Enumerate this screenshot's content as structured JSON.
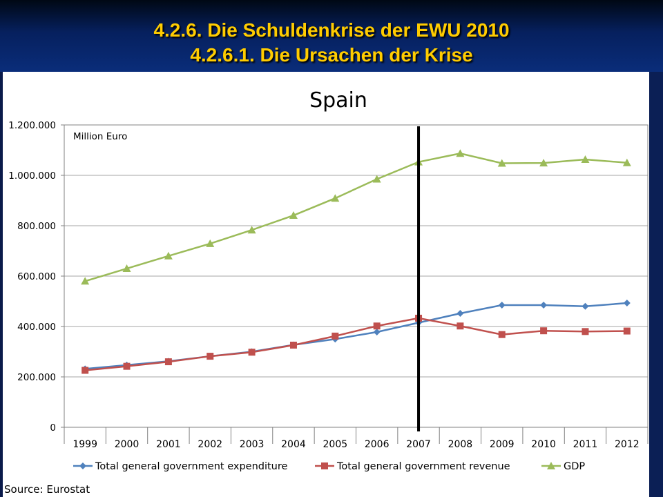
{
  "slide": {
    "title_line1": "4.2.6. Die Schuldenkrise der EWU 2010",
    "title_line2": "4.2.6.1. Die Ursachen der Krise",
    "source": "Source: Eurostat"
  },
  "chart_data": {
    "type": "line",
    "title": "Spain",
    "unit_label": "Million Euro",
    "categories": [
      "1999",
      "2000",
      "2001",
      "2002",
      "2003",
      "2004",
      "2005",
      "2006",
      "2007",
      "2008",
      "2009",
      "2010",
      "2011",
      "2012"
    ],
    "ylim": [
      0,
      1200000
    ],
    "y_ticks": [
      0,
      200000,
      400000,
      600000,
      800000,
      1000000,
      1200000
    ],
    "y_tick_labels": [
      "0",
      "200.000",
      "400.000",
      "600.000",
      "800.000",
      "1.000.000",
      "1.200.000"
    ],
    "grid": true,
    "legend_position": "bottom",
    "marker_line_category": "2007",
    "series": [
      {
        "name": "Total general government expenditure",
        "color": "#4f81bd",
        "marker": "diamond",
        "values": [
          232000,
          247000,
          262000,
          282000,
          300000,
          327000,
          350000,
          378000,
          415000,
          452000,
          485000,
          485000,
          480000,
          493000
        ]
      },
      {
        "name": "Total general government revenue",
        "color": "#c0504d",
        "marker": "square",
        "values": [
          226000,
          242000,
          260000,
          282000,
          298000,
          326000,
          362000,
          402000,
          433000,
          402000,
          368000,
          383000,
          380000,
          382000
        ]
      },
      {
        "name": "GDP",
        "color": "#9bbb59",
        "marker": "triangle",
        "values": [
          580000,
          630000,
          680000,
          729000,
          783000,
          841000,
          909000,
          985000,
          1053000,
          1087000,
          1048000,
          1049000,
          1063000,
          1050000
        ]
      }
    ]
  }
}
